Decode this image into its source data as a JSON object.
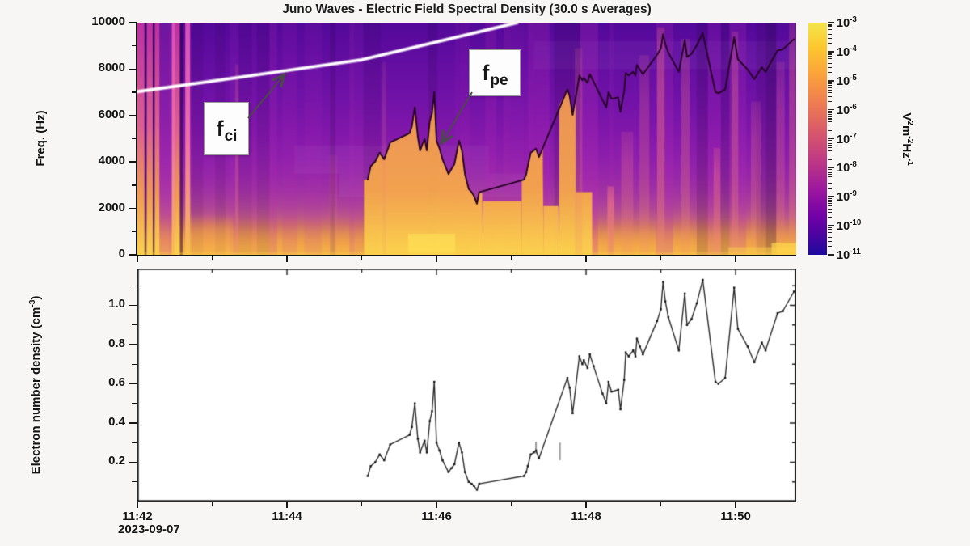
{
  "figure": {
    "date_label": "2023-09-07",
    "background": "#f7f6f4"
  },
  "chart_data": [
    {
      "type": "heatmap",
      "title": "Juno Waves - Electric Field Spectral Density (30.0 s Averages)",
      "ylabel": "Freq. (Hz)",
      "ylim": [
        0,
        10000
      ],
      "yticks": [
        0,
        2000,
        4000,
        6000,
        8000,
        10000
      ],
      "y_minor_ticks": [
        1000,
        3000,
        5000,
        7000,
        9000
      ],
      "t_max_min": 8.81,
      "x_major_ticks_min": [
        0,
        2,
        4,
        6,
        8
      ],
      "x_major_labels": [
        "11:42",
        "11:44",
        "11:46",
        "11:48",
        "11:50"
      ],
      "x_minor_ticks_min": [
        1,
        3,
        5,
        7
      ],
      "date_label": "2023-09-07",
      "colorbar": {
        "colormap": "plasma",
        "tick_exponents": [
          -3,
          -4,
          -5,
          -6,
          -7,
          -8,
          -9,
          -10,
          -11
        ],
        "unit_parts": [
          "V",
          {
            "sup": "2"
          },
          "m",
          {
            "sup": "-2"
          },
          "Hz",
          {
            "sup": "-1"
          }
        ],
        "unit_text": "V^2 m^-2 Hz^-1",
        "gradient_stops": [
          "#f3e54b 0%",
          "#fcc62d 11%",
          "#fba03c 23%",
          "#ee7b52 35%",
          "#d9586a 47%",
          "#bd3786 60%",
          "#9c179e 72%",
          "#7301a8 83%",
          "#4903a0 92%",
          "#1d0a9e 100%"
        ]
      },
      "annotations": [
        {
          "sym": "f",
          "sub": "ci",
          "target": "white-line"
        },
        {
          "sym": "f",
          "sub": "pe",
          "target": "black-trace"
        }
      ],
      "fci_line": {
        "t_min": [
          0,
          1,
          2,
          3,
          4,
          4.6,
          5.08
        ],
        "f_hz": [
          7030,
          7480,
          7940,
          8400,
          9170,
          9630,
          10000
        ]
      },
      "fpe_trace_note": "f_pe[Hz] = fpe_factor_hz * sqrt(n_e[cm^-3]); n_e series is in the second chart",
      "fpe_factor_hz": 8980,
      "background_gradient": [
        {
          "f": 10000,
          "c": "#53099a"
        },
        {
          "f": 8200,
          "c": "#640ea2"
        },
        {
          "f": 6500,
          "c": "#7313a8"
        },
        {
          "f": 5200,
          "c": "#8218ab"
        },
        {
          "f": 4200,
          "c": "#8e1fac"
        },
        {
          "f": 3400,
          "c": "#9827a9"
        },
        {
          "f": 2700,
          "c": "#a233a3"
        },
        {
          "f": 2100,
          "c": "#ae4399"
        },
        {
          "f": 1650,
          "c": "#bc5689"
        },
        {
          "f": 1250,
          "c": "#cf7169"
        },
        {
          "f": 950,
          "c": "#df8a57"
        },
        {
          "f": 650,
          "c": "#ec9b4c"
        },
        {
          "f": 350,
          "c": "#f3a947"
        },
        {
          "f": 0,
          "c": "#f6b44a"
        }
      ],
      "spectral_features": {
        "broadband_burst_stripes": [
          {
            "t0": 0.0,
            "t1": 0.095,
            "k": "hot"
          },
          {
            "t0": 0.095,
            "t1": 0.125,
            "k": "dark"
          },
          {
            "t0": 0.125,
            "t1": 0.205,
            "k": "hot"
          },
          {
            "t0": 0.205,
            "t1": 0.232,
            "k": "dark"
          },
          {
            "t0": 0.232,
            "t1": 0.295,
            "k": "hot"
          },
          {
            "t0": 0.295,
            "t1": 0.46,
            "k": "dim"
          },
          {
            "t0": 0.46,
            "t1": 0.505,
            "k": "hotpink"
          },
          {
            "t0": 0.505,
            "t1": 0.568,
            "k": "hot"
          },
          {
            "t0": 0.568,
            "t1": 0.605,
            "k": "dark"
          },
          {
            "t0": 0.64,
            "t1": 0.705,
            "k": "hotpink"
          }
        ],
        "underfpe_fill_segments": [
          [
            3.03,
            4.62,
            11000
          ],
          [
            4.62,
            5.14,
            2300
          ],
          [
            5.14,
            5.43,
            11000
          ],
          [
            5.43,
            5.64,
            2100
          ],
          [
            5.64,
            5.86,
            7200
          ],
          [
            5.86,
            6.08,
            2700
          ]
        ],
        "emission_columns": [
          {
            "t": 1.33,
            "f": 8200,
            "a": 0.28,
            "w": 0.045
          },
          {
            "t": 2.62,
            "f": 4300,
            "a": 0.16,
            "w": 0.1
          },
          {
            "t": 3.3,
            "f": 8300,
            "a": 0.2,
            "w": 0.05
          },
          {
            "t": 5.9,
            "f": 8900,
            "a": 0.28,
            "w": 0.1
          },
          {
            "t": 6.33,
            "f": 2950,
            "a": 0.7,
            "w": 0.09
          },
          {
            "t": 6.55,
            "f": 5300,
            "a": 0.28,
            "w": 0.16
          },
          {
            "t": 6.78,
            "f": 8600,
            "a": 0.26,
            "w": 0.13
          },
          {
            "t": 7.0,
            "f": 9800,
            "a": 0.42,
            "w": 0.1
          },
          {
            "t": 7.33,
            "f": 9300,
            "a": 0.3,
            "w": 0.11
          },
          {
            "t": 7.75,
            "f": 4600,
            "a": 0.38,
            "w": 0.09
          },
          {
            "t": 7.99,
            "f": 9600,
            "a": 0.35,
            "w": 0.09
          },
          {
            "t": 8.27,
            "f": 6600,
            "a": 0.26,
            "w": 0.13
          },
          {
            "t": 8.6,
            "f": 8300,
            "a": 0.26,
            "w": 0.11
          },
          {
            "t": 8.76,
            "f": 10000,
            "a": 0.36,
            "w": 0.09
          }
        ],
        "bottom_band_top_hz": 1000
      }
    },
    {
      "type": "line",
      "ylabel_parts": [
        "Electron number density (cm",
        {
          "sup": "-3"
        },
        ")"
      ],
      "ylabel_text": "Electron number density (cm^-3)",
      "ylim": [
        0,
        1.1875
      ],
      "yticks": [
        0.2,
        0.4,
        0.6,
        0.8,
        1.0
      ],
      "y_minor_ticks": [
        0.1,
        0.3,
        0.5,
        0.7,
        0.9,
        1.1
      ],
      "line_color": "#2b2b2b",
      "series": [
        {
          "name": "electron_number_density",
          "t_min": [
            3.08,
            3.12,
            3.18,
            3.24,
            3.3,
            3.38,
            3.64,
            3.67,
            3.71,
            3.75,
            3.78,
            3.84,
            3.87,
            3.91,
            3.94,
            3.97,
            4.0,
            4.04,
            4.08,
            4.16,
            4.2,
            4.24,
            4.3,
            4.34,
            4.38,
            4.43,
            4.47,
            4.5,
            4.54,
            4.57,
            5.17,
            5.2,
            5.22,
            5.26,
            5.3,
            5.33,
            5.37,
            5.75,
            5.78,
            5.82,
            5.91,
            5.95,
            5.97,
            6.02,
            6.05,
            6.1,
            6.22,
            6.27,
            6.3,
            6.34,
            6.43,
            6.46,
            6.51,
            6.53,
            6.57,
            6.63,
            6.66,
            6.68,
            6.72,
            6.76,
            6.95,
            7.0,
            7.03,
            7.06,
            7.1,
            7.24,
            7.32,
            7.35,
            7.41,
            7.48,
            7.56,
            7.73,
            7.77,
            7.86,
            7.98,
            8.03,
            8.16,
            8.25,
            8.35,
            8.4,
            8.56,
            8.63,
            8.78
          ],
          "values": [
            0.13,
            0.18,
            0.2,
            0.24,
            0.21,
            0.29,
            0.34,
            0.38,
            0.5,
            0.32,
            0.25,
            0.31,
            0.25,
            0.41,
            0.46,
            0.61,
            0.3,
            0.26,
            0.21,
            0.15,
            0.17,
            0.19,
            0.3,
            0.25,
            0.15,
            0.1,
            0.09,
            0.08,
            0.06,
            0.09,
            0.13,
            0.15,
            0.18,
            0.24,
            0.25,
            0.26,
            0.22,
            0.63,
            0.58,
            0.45,
            0.74,
            0.7,
            0.72,
            0.68,
            0.75,
            0.69,
            0.55,
            0.5,
            0.61,
            0.56,
            0.57,
            0.47,
            0.62,
            0.76,
            0.74,
            0.77,
            0.74,
            0.83,
            0.79,
            0.75,
            0.92,
            0.98,
            1.12,
            1.02,
            0.94,
            0.77,
            1.06,
            0.9,
            0.93,
            1.01,
            1.13,
            0.61,
            0.6,
            0.63,
            1.09,
            0.88,
            0.79,
            0.71,
            0.81,
            0.77,
            0.96,
            0.97,
            1.07
          ]
        }
      ],
      "uncertainty_bars": [
        {
          "t": 5.33,
          "n0": 0.245,
          "n1": 0.305
        },
        {
          "t": 5.65,
          "n0": 0.21,
          "n1": 0.3
        }
      ]
    }
  ]
}
